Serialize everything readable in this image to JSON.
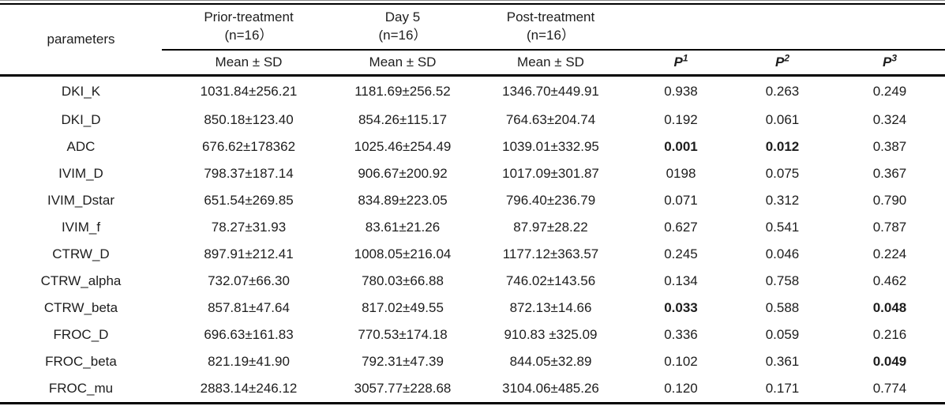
{
  "table": {
    "header": {
      "parameters_label": "parameters",
      "groups": [
        {
          "name": "Prior-treatment",
          "n": "(n=16）"
        },
        {
          "name": "Day 5",
          "n": "(n=16）"
        },
        {
          "name": "Post-treatment",
          "n": "(n=16）"
        }
      ],
      "mean_sd_label": "Mean ± SD",
      "p_columns": [
        {
          "base": "P",
          "sup": "1"
        },
        {
          "base": "P",
          "sup": "2"
        },
        {
          "base": "P",
          "sup": "3"
        }
      ]
    },
    "rows": [
      {
        "parameter": "DKI_K",
        "prior": "1031.84±256.21",
        "day5": "1181.69±256.52",
        "post": "1346.70±449.91",
        "p1": "0.938",
        "p2": "0.263",
        "p3": "0.249",
        "bold": []
      },
      {
        "parameter": "DKI_D",
        "prior": "850.18±123.40",
        "day5": "854.26±115.17",
        "post": "764.63±204.74",
        "p1": "0.192",
        "p2": "0.061",
        "p3": "0.324",
        "bold": []
      },
      {
        "parameter": "ADC",
        "prior": "676.62±178362",
        "day5": "1025.46±254.49",
        "post": "1039.01±332.95",
        "p1": "0.001",
        "p2": "0.012",
        "p3": "0.387",
        "bold": [
          "p1",
          "p2"
        ]
      },
      {
        "parameter": "IVIM_D",
        "prior": "798.37±187.14",
        "day5": "906.67±200.92",
        "post": "1017.09±301.87",
        "p1": "0198",
        "p2": "0.075",
        "p3": "0.367",
        "bold": []
      },
      {
        "parameter": "IVIM_Dstar",
        "prior": "651.54±269.85",
        "day5": "834.89±223.05",
        "post": "796.40±236.79",
        "p1": "0.071",
        "p2": "0.312",
        "p3": "0.790",
        "bold": []
      },
      {
        "parameter": "IVIM_f",
        "prior": "78.27±31.93",
        "day5": "83.61±21.26",
        "post": "87.97±28.22",
        "p1": "0.627",
        "p2": "0.541",
        "p3": "0.787",
        "bold": []
      },
      {
        "parameter": "CTRW_D",
        "prior": "897.91±212.41",
        "day5": "1008.05±216.04",
        "post": "1177.12±363.57",
        "p1": "0.245",
        "p2": "0.046",
        "p3": "0.224",
        "bold": []
      },
      {
        "parameter": "CTRW_alpha",
        "prior": "732.07±66.30",
        "day5": "780.03±66.88",
        "post": "746.02±143.56",
        "p1": "0.134",
        "p2": "0.758",
        "p3": "0.462",
        "bold": []
      },
      {
        "parameter": "CTRW_beta",
        "prior": "857.81±47.64",
        "day5": "817.02±49.55",
        "post": "872.13±14.66",
        "p1": "0.033",
        "p2": "0.588",
        "p3": "0.048",
        "bold": [
          "p1",
          "p3"
        ]
      },
      {
        "parameter": "FROC_D",
        "prior": "696.63±161.83",
        "day5": "770.53±174.18",
        "post": "910.83 ±325.09",
        "p1": "0.336",
        "p2": "0.059",
        "p3": "0.216",
        "bold": []
      },
      {
        "parameter": "FROC_beta",
        "prior": "821.19±41.90",
        "day5": "792.31±47.39",
        "post": "844.05±32.89",
        "p1": "0.102",
        "p2": "0.361",
        "p3": "0.049",
        "bold": [
          "p3"
        ]
      },
      {
        "parameter": "FROC_mu",
        "prior": "2883.14±246.12",
        "day5": "3057.77±228.68",
        "post": "3104.06±485.26",
        "p1": "0.120",
        "p2": "0.171",
        "p3": "0.774",
        "bold": []
      }
    ]
  }
}
